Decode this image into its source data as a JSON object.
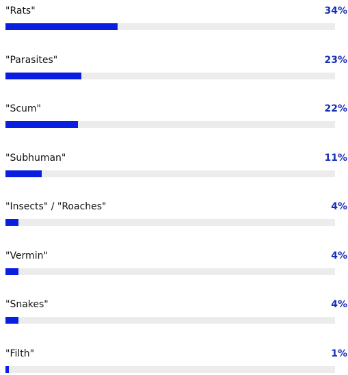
{
  "chart_data": {
    "type": "bar",
    "orientation": "horizontal",
    "categories": [
      "\"Rats\"",
      "\"Parasites\"",
      "\"Scum\"",
      "\"Subhuman\"",
      "\"Insects\" / \"Roaches\"",
      "\"Vermin\"",
      "\"Snakes\"",
      "\"Filth\""
    ],
    "values": [
      34,
      23,
      22,
      11,
      4,
      4,
      4,
      1
    ],
    "value_labels": [
      "34%",
      "23%",
      "22%",
      "11%",
      "4%",
      "4%",
      "4%",
      "1%"
    ],
    "xlim": [
      0,
      100
    ],
    "grid": false,
    "legend": "none",
    "colors": {
      "bar": "#0a1ee0",
      "track": "#ececec",
      "value_text": "#1a2fb8",
      "label_text": "#111111"
    }
  }
}
